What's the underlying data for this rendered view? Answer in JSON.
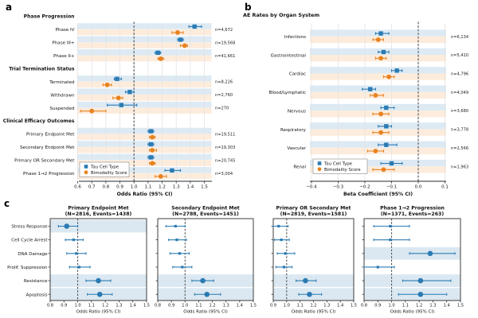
{
  "figure": {
    "panel_a_label": "a",
    "panel_b_label": "b",
    "panel_c_label": "c"
  },
  "colors": {
    "tau_blue": "#2b7bb3",
    "bimodality_orange": "#e8821f",
    "band_blue": "#ddeaf4",
    "band_orange": "#fdecdc",
    "highlight_band": "#dbe8f1",
    "grid": "#e3e3e3",
    "axis": "#2b2b2b",
    "refline": "#4d4d4d"
  },
  "chart_data": [
    {
      "id": "a",
      "type": "forest",
      "xlabel": "Odds Ratio (95% CI)",
      "x_ticks": [
        0.6,
        0.7,
        0.8,
        0.9,
        1.0,
        1.1,
        1.2,
        1.3,
        1.4,
        1.5
      ],
      "refline": 1.0,
      "legend": [
        {
          "series": "Tau Cell Type",
          "marker": "square"
        },
        {
          "series": "Bimodality Score",
          "marker": "circle"
        }
      ],
      "sections": [
        {
          "header": "Phase Progression",
          "rows": [
            {
              "label": "Phase IV",
              "n": "n=4,672",
              "tau": [
                1.43,
                1.39,
                1.48
              ],
              "bim": [
                1.31,
                1.27,
                1.35
              ]
            },
            {
              "label": "Phase III+",
              "n": "n=19,568",
              "tau": [
                1.33,
                1.31,
                1.35
              ],
              "bim": [
                1.36,
                1.33,
                1.38
              ]
            },
            {
              "label": "Phase II+",
              "n": "n=41,661",
              "tau": [
                1.17,
                1.15,
                1.19
              ],
              "bim": [
                1.19,
                1.17,
                1.21
              ]
            }
          ]
        },
        {
          "header": "Trial Termination Status",
          "rows": [
            {
              "label": "Terminated",
              "n": "n=8,226",
              "tau": [
                0.88,
                0.86,
                0.91
              ],
              "bim": [
                0.81,
                0.78,
                0.84
              ]
            },
            {
              "label": "Withdrawn",
              "n": "n=2,760",
              "tau": [
                0.97,
                0.94,
                1.0
              ],
              "bim": [
                0.89,
                0.85,
                0.92
              ]
            },
            {
              "label": "Suspended",
              "n": "n=270",
              "tau": [
                0.91,
                0.81,
                1.02
              ],
              "bim": [
                0.7,
                0.62,
                0.8
              ]
            }
          ]
        },
        {
          "header": "Clinical Efficacy Outcomes",
          "rows": [
            {
              "label": "Primary Endpoint Met",
              "n": "n=19,511",
              "tau": [
                1.12,
                1.1,
                1.14
              ],
              "bim": [
                1.13,
                1.11,
                1.15
              ]
            },
            {
              "label": "Secondary Endpoint Met",
              "n": "n=19,303",
              "tau": [
                1.12,
                1.1,
                1.14
              ],
              "bim": [
                1.13,
                1.11,
                1.16
              ]
            },
            {
              "label": "Primary OR Secondary Met",
              "n": "n=20,745",
              "tau": [
                1.12,
                1.1,
                1.14
              ],
              "bim": [
                1.13,
                1.11,
                1.15
              ]
            },
            {
              "label": "Phase 1→2 Progression",
              "n": "n=3,004",
              "tau": [
                1.27,
                1.22,
                1.33
              ],
              "bim": [
                1.19,
                1.15,
                1.23
              ]
            }
          ]
        }
      ]
    },
    {
      "id": "b",
      "type": "forest",
      "title": "AE Rates by Organ System",
      "xlabel": "Beta Coefficient (95% CI)",
      "x_ticks": [
        -0.4,
        -0.3,
        -0.2,
        -0.1,
        0.0,
        0.1
      ],
      "refline": 0.0,
      "legend": [
        {
          "series": "Tau Cell Type",
          "marker": "square"
        },
        {
          "series": "Bimodality Score",
          "marker": "circle"
        }
      ],
      "rows": [
        {
          "label": "Infections",
          "n": "n=6,134",
          "tau": [
            -0.14,
            -0.16,
            -0.11
          ],
          "bim": [
            -0.15,
            -0.17,
            -0.13
          ]
        },
        {
          "label": "Gastrointestinal",
          "n": "n=5,410",
          "tau": [
            -0.13,
            -0.15,
            -0.11
          ],
          "bim": [
            -0.14,
            -0.16,
            -0.12
          ]
        },
        {
          "label": "Cardiac",
          "n": "n=4,796",
          "tau": [
            -0.08,
            -0.1,
            -0.06
          ],
          "bim": [
            -0.11,
            -0.13,
            -0.09
          ]
        },
        {
          "label": "Blood/Lymphatic",
          "n": "n=4,049",
          "tau": [
            -0.18,
            -0.21,
            -0.16
          ],
          "bim": [
            -0.16,
            -0.18,
            -0.13
          ]
        },
        {
          "label": "Nervous",
          "n": "n=3,680",
          "tau": [
            -0.12,
            -0.14,
            -0.09
          ],
          "bim": [
            -0.14,
            -0.17,
            -0.11
          ]
        },
        {
          "label": "Respiratory",
          "n": "n=3,778",
          "tau": [
            -0.12,
            -0.15,
            -0.1
          ],
          "bim": [
            -0.14,
            -0.17,
            -0.11
          ]
        },
        {
          "label": "Vascular",
          "n": "n=2,566",
          "tau": [
            -0.12,
            -0.15,
            -0.08
          ],
          "bim": [
            -0.16,
            -0.19,
            -0.13
          ]
        },
        {
          "label": "Renal",
          "n": "n=1,963",
          "tau": [
            -0.1,
            -0.14,
            -0.06
          ],
          "bim": [
            -0.13,
            -0.17,
            -0.09
          ]
        }
      ]
    },
    {
      "id": "c",
      "type": "forest-grid",
      "ylabels": [
        "Stress Response",
        "Cell Cycle Arrest",
        "DNA Damage",
        "Prolif. Suppression",
        "Resistance",
        "Apoptosis"
      ],
      "xlabel": "Odds Ratio (95% CI)",
      "subplots": [
        {
          "title_line1": "Primary Endpoint Met",
          "title_line2": "(N=2816, Events=1438)",
          "xlim": [
            0.8,
            1.5
          ],
          "x_ticks": [
            0.8,
            0.9,
            1.0,
            1.1,
            1.2,
            1.3,
            1.4,
            1.5
          ],
          "points": [
            {
              "or": 0.92,
              "lo": 0.86,
              "hi": 1.0,
              "highlight": true
            },
            {
              "or": 0.97,
              "lo": 0.91,
              "hi": 1.04,
              "highlight": false
            },
            {
              "or": 0.99,
              "lo": 0.92,
              "hi": 1.06,
              "highlight": false
            },
            {
              "or": 1.01,
              "lo": 0.94,
              "hi": 1.09,
              "highlight": false
            },
            {
              "or": 1.15,
              "lo": 1.06,
              "hi": 1.24,
              "highlight": true
            },
            {
              "or": 1.16,
              "lo": 1.07,
              "hi": 1.25,
              "highlight": true
            }
          ]
        },
        {
          "title_line1": "Secondary Endpoint Met",
          "title_line2": "(N=2788, Events=1451)",
          "xlim": [
            0.8,
            1.5
          ],
          "x_ticks": [
            0.8,
            0.9,
            1.0,
            1.1,
            1.2,
            1.3,
            1.4,
            1.5
          ],
          "points": [
            {
              "or": 0.93,
              "lo": 0.86,
              "hi": 1.0,
              "highlight": false
            },
            {
              "or": 0.94,
              "lo": 0.88,
              "hi": 1.01,
              "highlight": false
            },
            {
              "or": 0.96,
              "lo": 0.89,
              "hi": 1.03,
              "highlight": false
            },
            {
              "or": 0.98,
              "lo": 0.91,
              "hi": 1.05,
              "highlight": false
            },
            {
              "or": 1.13,
              "lo": 1.05,
              "hi": 1.21,
              "highlight": true
            },
            {
              "or": 1.16,
              "lo": 1.07,
              "hi": 1.26,
              "highlight": true
            }
          ]
        },
        {
          "title_line1": "Primary OR Secondary Met",
          "title_line2": "(N=2819, Events=1581)",
          "xlim": [
            0.9,
            1.5
          ],
          "x_ticks": [
            0.9,
            1.0,
            1.1,
            1.2,
            1.3,
            1.4,
            1.5
          ],
          "points": [
            {
              "or": 0.94,
              "lo": 0.9,
              "hi": 1.01,
              "highlight": false
            },
            {
              "or": 0.96,
              "lo": 0.91,
              "hi": 1.02,
              "highlight": false
            },
            {
              "or": 0.99,
              "lo": 0.93,
              "hi": 1.06,
              "highlight": false
            },
            {
              "or": 0.98,
              "lo": 0.92,
              "hi": 1.04,
              "highlight": false
            },
            {
              "or": 1.14,
              "lo": 1.07,
              "hi": 1.22,
              "highlight": true
            },
            {
              "or": 1.17,
              "lo": 1.09,
              "hi": 1.26,
              "highlight": true
            }
          ]
        },
        {
          "title_line1": "Phase 1→2 Progression",
          "title_line2": "(N=1371, Events=263)",
          "xlim": [
            0.8,
            1.5
          ],
          "x_ticks": [
            0.8,
            0.9,
            1.0,
            1.1,
            1.2,
            1.3,
            1.4,
            1.5
          ],
          "points": [
            {
              "or": 0.99,
              "lo": 0.87,
              "hi": 1.13,
              "highlight": false
            },
            {
              "or": 0.99,
              "lo": 0.87,
              "hi": 1.13,
              "highlight": false
            },
            {
              "or": 1.28,
              "lo": 1.13,
              "hi": 1.46,
              "highlight": true
            },
            {
              "or": 0.9,
              "lo": 0.8,
              "hi": 1.02,
              "highlight": false
            },
            {
              "or": 1.21,
              "lo": 1.08,
              "hi": 1.43,
              "highlight": true
            },
            {
              "or": 1.21,
              "lo": 1.05,
              "hi": 1.4,
              "highlight": true
            }
          ]
        }
      ]
    }
  ]
}
